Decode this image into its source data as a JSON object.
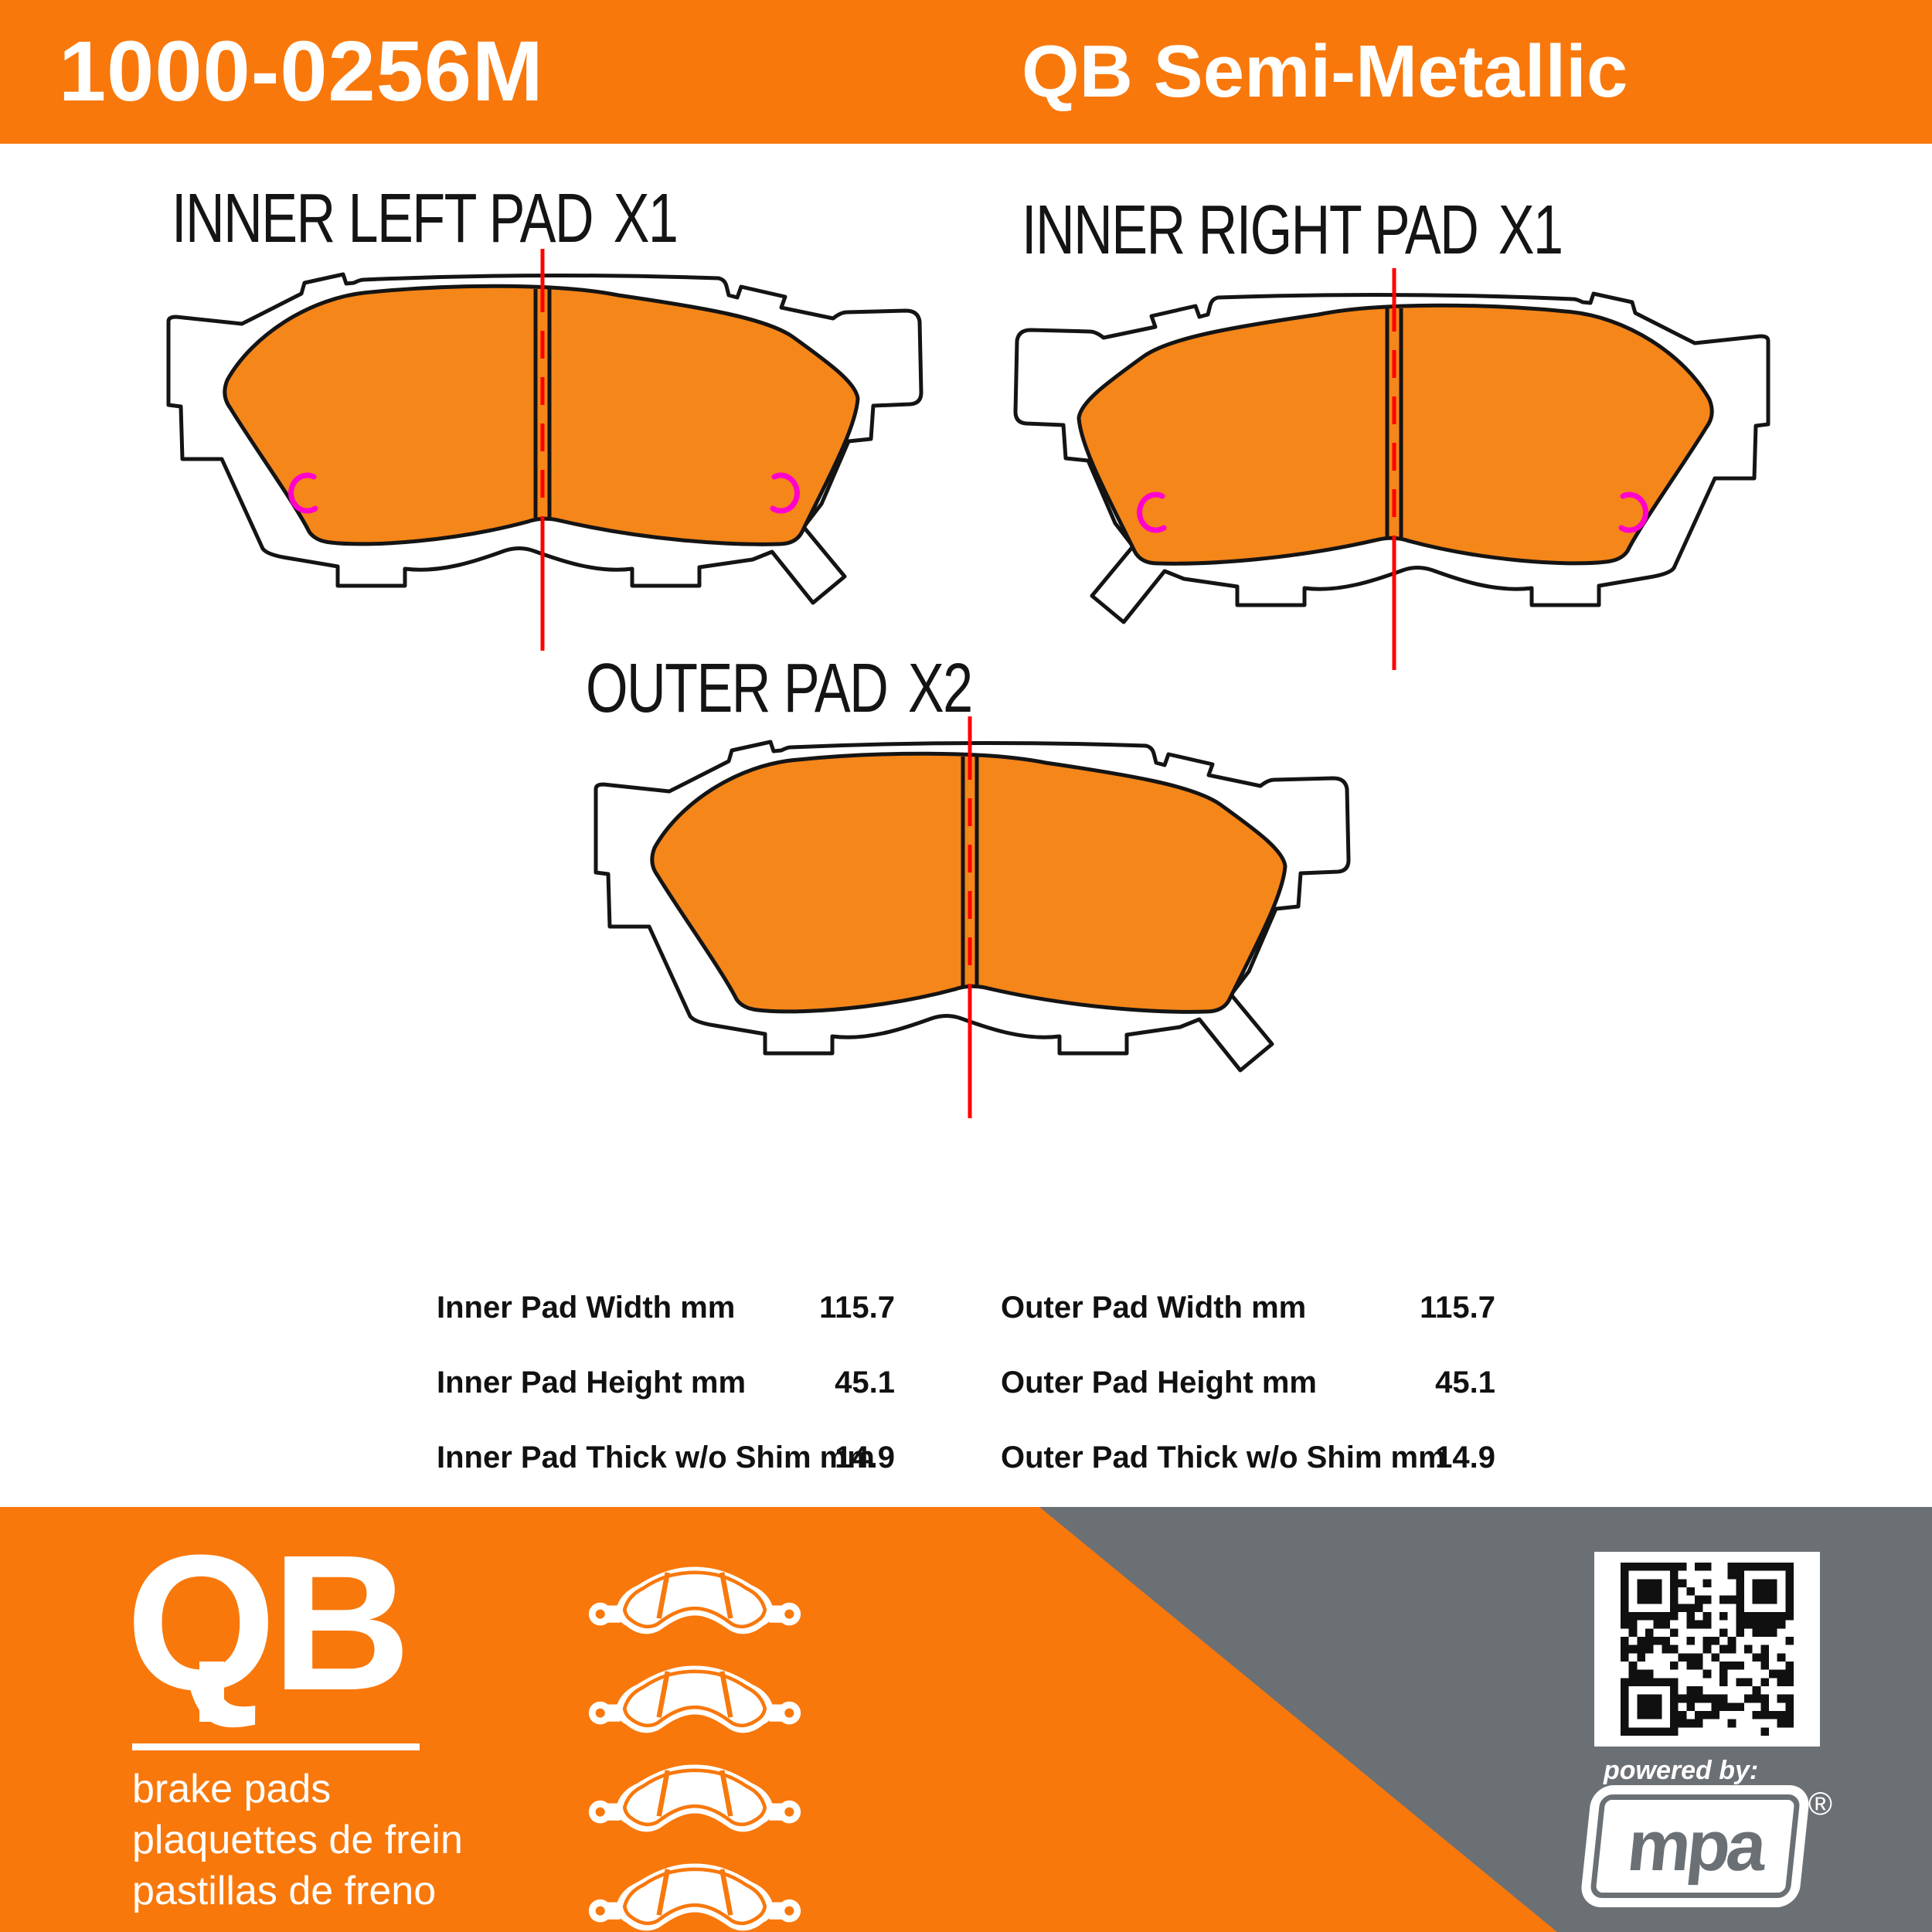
{
  "header": {
    "part_number": "1000-0256M",
    "product_line": "QB Semi-Metallic"
  },
  "diagrams": [
    {
      "label": "INNER LEFT PAD",
      "qty": "X1"
    },
    {
      "label": "INNER RIGHT PAD",
      "qty": "X1"
    },
    {
      "label": "OUTER PAD",
      "qty": "X2"
    }
  ],
  "specs": {
    "inner": [
      {
        "label": "Inner Pad Width mm",
        "value": "115.7"
      },
      {
        "label": "Inner Pad Height mm",
        "value": "45.1"
      },
      {
        "label": "Inner Pad Thick w/o Shim mm",
        "value": "14.9"
      }
    ],
    "outer": [
      {
        "label": "Outer Pad Width mm",
        "value": "115.7"
      },
      {
        "label": "Outer Pad Height mm",
        "value": "45.1"
      },
      {
        "label": "Outer Pad Thick w/o Shim mm",
        "value": "14.9"
      }
    ]
  },
  "footer": {
    "logo_text": "QB",
    "taglines": [
      "brake pads",
      "plaquettes de frein",
      "pastillas de freno"
    ],
    "powered_by": "powered by:",
    "brand": "mpa",
    "registered_mark": "®"
  },
  "colors": {
    "orange": "#F8780C",
    "pad_orange": "#F5861A",
    "gray": "#6B7075",
    "magenta": "#FF00CC",
    "red": "#FF0000",
    "outline": "#141414"
  }
}
